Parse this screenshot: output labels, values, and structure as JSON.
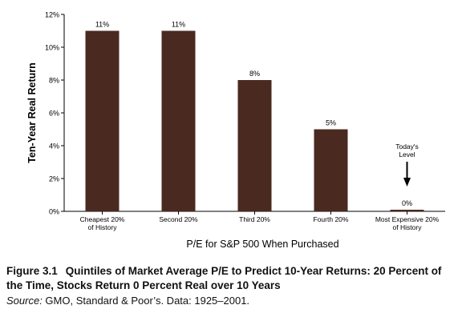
{
  "chart_data": {
    "type": "bar",
    "categories": [
      [
        "Cheapest 20%",
        "of History"
      ],
      [
        "Second  20%"
      ],
      [
        "Third 20%"
      ],
      [
        "Fourth 20%"
      ],
      [
        "Most Expensive 20%",
        "of History"
      ]
    ],
    "values": [
      11,
      11,
      8,
      5,
      0
    ],
    "data_labels": [
      "11%",
      "11%",
      "8%",
      "5%",
      "0%"
    ],
    "xlabel": "P/E for S&P 500 When Purchased",
    "ylabel": "Ten-Year Real Return",
    "ylim": [
      0,
      12
    ],
    "yticks": [
      0,
      2,
      4,
      6,
      8,
      10,
      12
    ],
    "ytick_labels": [
      "0%",
      "2%",
      "4%",
      "6%",
      "8%",
      "10%",
      "12%"
    ],
    "grid": false,
    "annotation": {
      "text": [
        "Today's",
        "Level"
      ],
      "category_index": 4
    },
    "bar_color": "#4a2a20"
  },
  "caption": {
    "figure_number": "Figure 3.1",
    "title_line1": "Quintiles of Market Average P/E to Predict 10-Year Returns: 20 Percent of",
    "title_line2": "the Time, Stocks Return 0 Percent Real over 10 Years",
    "source_label": "Source:",
    "source_text": " GMO, Standard & Poor’s. Data: 1925–2001."
  }
}
